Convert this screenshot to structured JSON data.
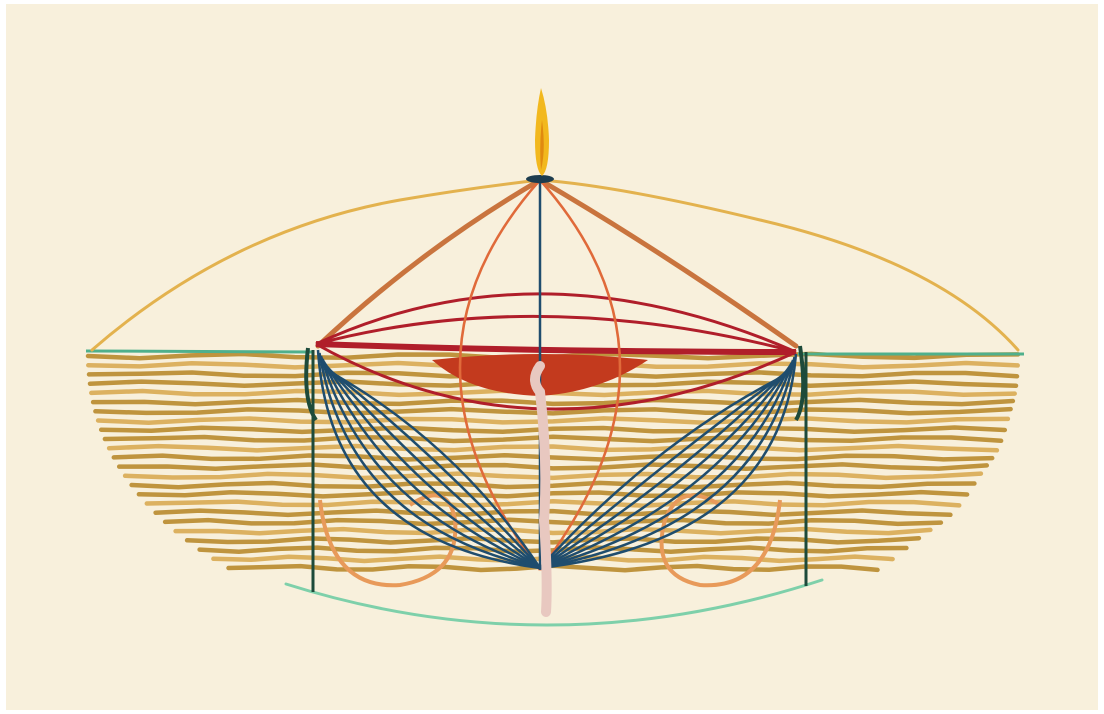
{
  "artwork": {
    "paper_color": "#f8f0dc",
    "border_color": "#ffffff",
    "colors": {
      "flame": "#f2b81e",
      "flame_core": "#e08a10",
      "wick": "#1d3c4e",
      "dome_outline": "#e3b24e",
      "waterline": "#4fb08c",
      "lower_arc": "#7ed0aa",
      "bowl_stripes": "#b88a2c",
      "bowl_stripes_light": "#d8aa52",
      "posts": "#1d4a3a",
      "blue_threads": "#1f4d6e",
      "red_threads": "#b01e2a",
      "orange_threads": "#e06a3a",
      "rust_threads": "#c9743e",
      "red_pool": "#c33a1e",
      "pink_stem": "#e8c8c0",
      "loops": "#e89a5a"
    }
  }
}
